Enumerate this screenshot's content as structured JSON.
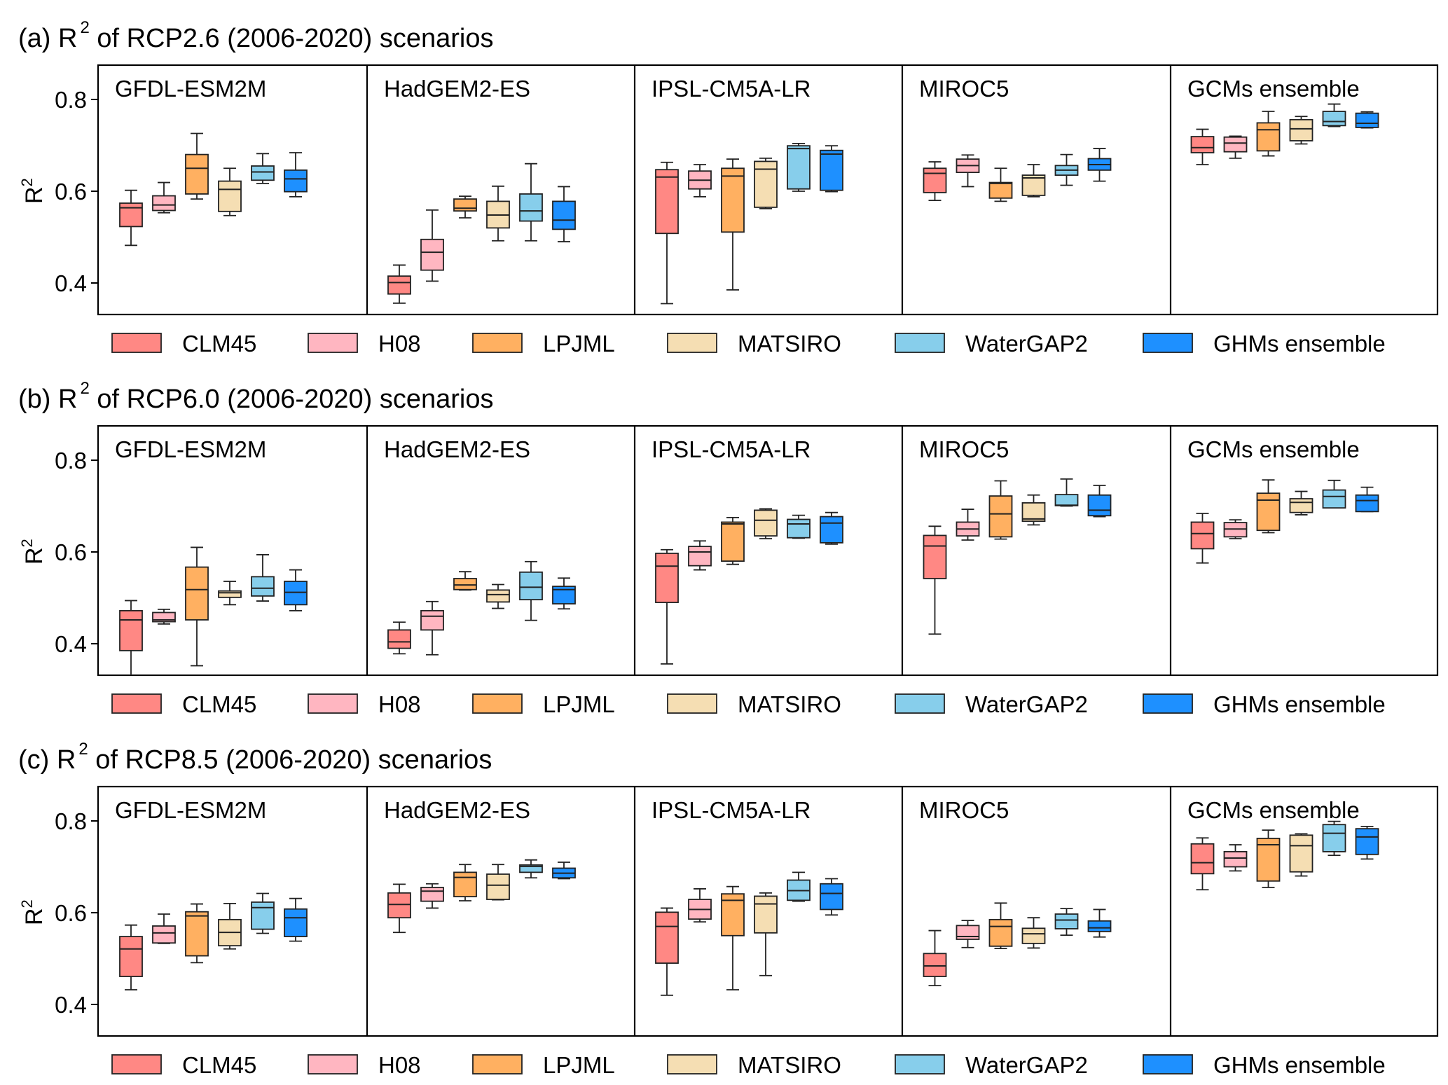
{
  "chart_data": {
    "type": "box",
    "ylabel": "R2",
    "ylim": [
      0.33,
      0.87
    ],
    "yticks": [
      0.4,
      0.6,
      0.8
    ],
    "ytick_labels": [
      "0.4",
      "0.6",
      "0.8"
    ],
    "gcms": [
      "GFDL-ESM2M",
      "HadGEM2-ES",
      "IPSL-CM5A-LR",
      "MIROC5",
      "GCMs ensemble"
    ],
    "legend": {
      "placement": "below each panel row",
      "entries": [
        {
          "name": "CLM45",
          "color": "#FF8884"
        },
        {
          "name": "H08",
          "color": "#FFB6C1"
        },
        {
          "name": "LPJML",
          "color": "#FFB061"
        },
        {
          "name": "MATSIRO",
          "color": "#F5DEB3"
        },
        {
          "name": "WaterGAP2",
          "color": "#87CEEB"
        },
        {
          "name": "GHMs ensemble",
          "color": "#1E90FF"
        }
      ]
    },
    "box_fields": [
      "whisker_low",
      "q1",
      "median",
      "q3",
      "whisker_high"
    ],
    "panels": [
      {
        "label": "(a)",
        "title_prefix": "(a) R",
        "title_sup": "2",
        "title_suffix": " of RCP2.6 (2006-2020) scenarios",
        "groups": [
          [
            [
              0.482,
              0.523,
              0.564,
              0.574,
              0.602
            ],
            [
              0.553,
              0.558,
              0.57,
              0.59,
              0.619
            ],
            [
              0.583,
              0.594,
              0.65,
              0.68,
              0.726
            ],
            [
              0.547,
              0.556,
              0.604,
              0.622,
              0.65
            ],
            [
              0.617,
              0.624,
              0.642,
              0.655,
              0.682
            ],
            [
              0.588,
              0.599,
              0.627,
              0.646,
              0.684
            ]
          ],
          [
            [
              0.356,
              0.376,
              0.401,
              0.415,
              0.439
            ],
            [
              0.404,
              0.428,
              0.467,
              0.495,
              0.559
            ],
            [
              0.542,
              0.557,
              0.563,
              0.583,
              0.589
            ],
            [
              0.492,
              0.52,
              0.548,
              0.578,
              0.611
            ],
            [
              0.492,
              0.535,
              0.557,
              0.594,
              0.66
            ],
            [
              0.49,
              0.517,
              0.537,
              0.578,
              0.61
            ]
          ],
          [
            [
              0.355,
              0.508,
              0.631,
              0.647,
              0.663
            ],
            [
              0.588,
              0.605,
              0.624,
              0.644,
              0.658
            ],
            [
              0.385,
              0.511,
              0.633,
              0.65,
              0.67
            ],
            [
              0.562,
              0.565,
              0.648,
              0.665,
              0.672
            ],
            [
              0.6,
              0.605,
              0.693,
              0.699,
              0.704
            ],
            [
              0.599,
              0.602,
              0.681,
              0.689,
              0.699
            ]
          ],
          [
            [
              0.58,
              0.597,
              0.639,
              0.65,
              0.664
            ],
            [
              0.61,
              0.641,
              0.656,
              0.67,
              0.679
            ],
            [
              0.578,
              0.585,
              0.617,
              0.619,
              0.65
            ],
            [
              0.588,
              0.591,
              0.629,
              0.635,
              0.658
            ],
            [
              0.613,
              0.635,
              0.646,
              0.656,
              0.68
            ],
            [
              0.622,
              0.646,
              0.658,
              0.671,
              0.693
            ]
          ],
          [
            [
              0.658,
              0.684,
              0.695,
              0.719,
              0.735
            ],
            [
              0.672,
              0.686,
              0.705,
              0.718,
              0.72
            ],
            [
              0.677,
              0.688,
              0.734,
              0.749,
              0.774
            ],
            [
              0.703,
              0.71,
              0.736,
              0.756,
              0.763
            ],
            [
              0.741,
              0.743,
              0.752,
              0.774,
              0.79
            ],
            [
              0.738,
              0.739,
              0.748,
              0.77,
              0.773
            ]
          ]
        ]
      },
      {
        "label": "(b)",
        "title_prefix": "(b) R",
        "title_sup": "2",
        "title_suffix": " of RCP6.0 (2006-2020) scenarios",
        "groups": [
          [
            [
              0.32,
              0.385,
              0.452,
              0.472,
              0.494
            ],
            [
              0.443,
              0.448,
              0.452,
              0.468,
              0.475
            ],
            [
              0.352,
              0.452,
              0.518,
              0.567,
              0.61
            ],
            [
              0.485,
              0.501,
              0.511,
              0.515,
              0.536
            ],
            [
              0.493,
              0.504,
              0.521,
              0.546,
              0.594
            ],
            [
              0.472,
              0.485,
              0.512,
              0.536,
              0.561
            ]
          ],
          [
            [
              0.378,
              0.39,
              0.404,
              0.43,
              0.447
            ],
            [
              0.376,
              0.43,
              0.46,
              0.472,
              0.492
            ],
            [
              0.517,
              0.518,
              0.528,
              0.542,
              0.557
            ],
            [
              0.477,
              0.491,
              0.507,
              0.517,
              0.529
            ],
            [
              0.451,
              0.496,
              0.523,
              0.556,
              0.579
            ],
            [
              0.476,
              0.487,
              0.518,
              0.525,
              0.543
            ]
          ],
          [
            [
              0.356,
              0.49,
              0.569,
              0.597,
              0.605
            ],
            [
              0.561,
              0.57,
              0.6,
              0.612,
              0.624
            ],
            [
              0.573,
              0.58,
              0.661,
              0.665,
              0.675
            ],
            [
              0.629,
              0.635,
              0.669,
              0.691,
              0.694
            ],
            [
              0.63,
              0.631,
              0.661,
              0.671,
              0.68
            ],
            [
              0.617,
              0.62,
              0.663,
              0.677,
              0.686
            ]
          ],
          [
            [
              0.421,
              0.542,
              0.613,
              0.636,
              0.656
            ],
            [
              0.626,
              0.635,
              0.65,
              0.665,
              0.693
            ],
            [
              0.628,
              0.633,
              0.683,
              0.722,
              0.755
            ],
            [
              0.659,
              0.667,
              0.672,
              0.707,
              0.724
            ],
            [
              0.7,
              0.701,
              0.702,
              0.725,
              0.759
            ],
            [
              0.677,
              0.679,
              0.691,
              0.724,
              0.745
            ]
          ],
          [
            [
              0.576,
              0.607,
              0.64,
              0.665,
              0.684
            ],
            [
              0.629,
              0.633,
              0.65,
              0.664,
              0.67
            ],
            [
              0.642,
              0.647,
              0.713,
              0.728,
              0.757
            ],
            [
              0.681,
              0.686,
              0.708,
              0.716,
              0.732
            ],
            [
              0.696,
              0.696,
              0.721,
              0.735,
              0.756
            ],
            [
              0.688,
              0.688,
              0.712,
              0.724,
              0.741
            ]
          ]
        ]
      },
      {
        "label": "(c)",
        "title_prefix": "(c) R",
        "title_sup": "2",
        "title_suffix": " of RCP8.5 (2006-2020) scenarios",
        "groups": [
          [
            [
              0.432,
              0.461,
              0.521,
              0.548,
              0.573
            ],
            [
              0.533,
              0.534,
              0.556,
              0.571,
              0.597
            ],
            [
              0.491,
              0.506,
              0.593,
              0.602,
              0.619
            ],
            [
              0.521,
              0.528,
              0.557,
              0.585,
              0.62
            ],
            [
              0.555,
              0.564,
              0.611,
              0.623,
              0.642
            ],
            [
              0.538,
              0.548,
              0.589,
              0.608,
              0.631
            ]
          ],
          [
            [
              0.557,
              0.589,
              0.618,
              0.643,
              0.662
            ],
            [
              0.61,
              0.625,
              0.647,
              0.655,
              0.663
            ],
            [
              0.626,
              0.635,
              0.677,
              0.688,
              0.705
            ],
            [
              0.628,
              0.629,
              0.66,
              0.684,
              0.705
            ],
            [
              0.676,
              0.688,
              0.701,
              0.704,
              0.715
            ],
            [
              0.674,
              0.676,
              0.686,
              0.697,
              0.71
            ]
          ],
          [
            [
              0.42,
              0.49,
              0.57,
              0.601,
              0.61
            ],
            [
              0.58,
              0.586,
              0.607,
              0.629,
              0.652
            ],
            [
              0.432,
              0.55,
              0.627,
              0.641,
              0.657
            ],
            [
              0.463,
              0.556,
              0.619,
              0.636,
              0.643
            ],
            [
              0.625,
              0.627,
              0.648,
              0.671,
              0.688
            ],
            [
              0.595,
              0.607,
              0.642,
              0.663,
              0.674
            ]
          ],
          [
            [
              0.441,
              0.461,
              0.484,
              0.511,
              0.561
            ],
            [
              0.524,
              0.542,
              0.548,
              0.572,
              0.583
            ],
            [
              0.522,
              0.527,
              0.57,
              0.585,
              0.621
            ],
            [
              0.523,
              0.533,
              0.554,
              0.566,
              0.589
            ],
            [
              0.551,
              0.565,
              0.584,
              0.597,
              0.609
            ],
            [
              0.547,
              0.559,
              0.567,
              0.582,
              0.607
            ]
          ],
          [
            [
              0.65,
              0.685,
              0.709,
              0.75,
              0.763
            ],
            [
              0.691,
              0.7,
              0.719,
              0.733,
              0.748
            ],
            [
              0.655,
              0.669,
              0.748,
              0.762,
              0.78
            ],
            [
              0.68,
              0.689,
              0.746,
              0.769,
              0.772
            ],
            [
              0.725,
              0.733,
              0.773,
              0.792,
              0.799
            ],
            [
              0.717,
              0.727,
              0.765,
              0.783,
              0.788
            ]
          ]
        ]
      }
    ]
  }
}
